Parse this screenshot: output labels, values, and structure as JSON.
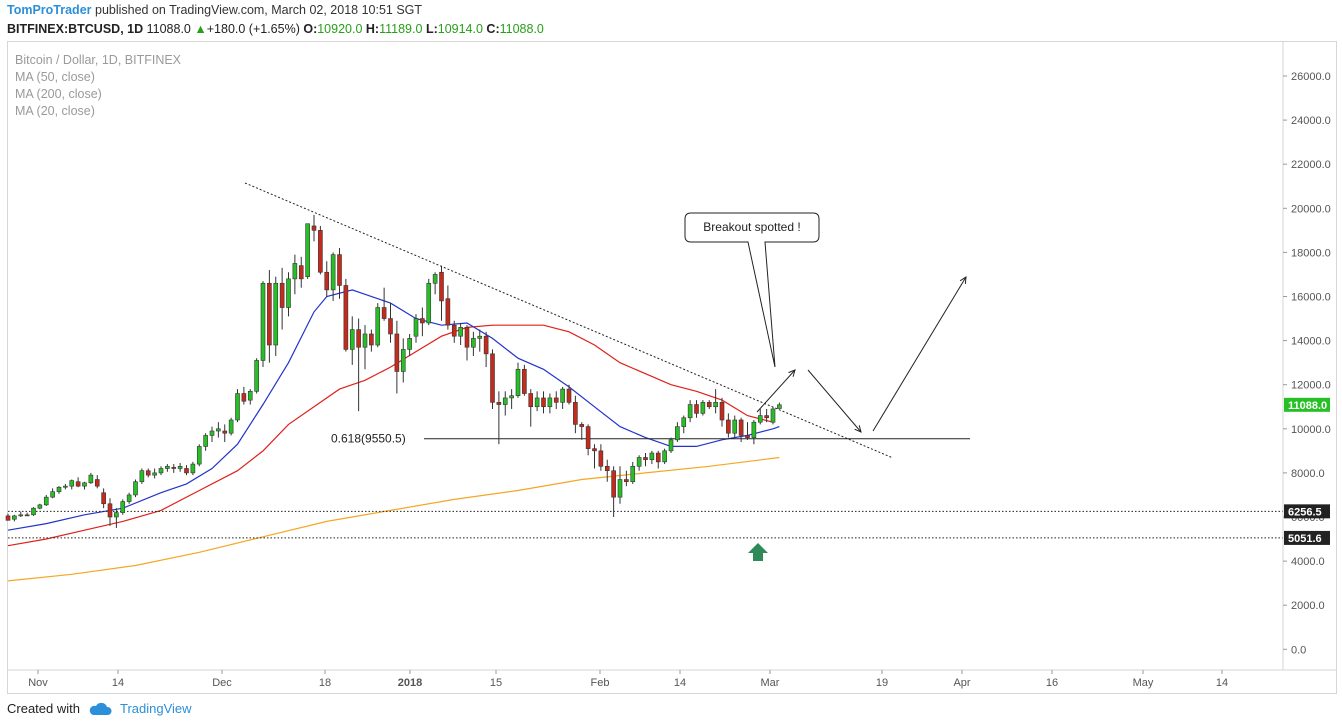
{
  "header": {
    "author": "TomProTrader",
    "published": " published on TradingView.com, March 02, 2018 10:51 SGT",
    "symbol": "BITFINEX:BTCUSD, 1D",
    "last": "11088.0",
    "change": "+180.0 (+1.65%)",
    "o_label": "O:",
    "o_value": "10920.0",
    "h_label": "H:",
    "h_value": "11189.0",
    "l_label": "L:",
    "l_value": "10914.0",
    "c_label": "C:",
    "c_value": "11088.0"
  },
  "legend": {
    "title": "Bitcoin / Dollar, 1D, BITFINEX",
    "ma50": "MA (50, close)",
    "ma200": "MA (200, close)",
    "ma20": "MA (20, close)"
  },
  "annotations": {
    "fib_label": "0.618(9550.5)",
    "callout": "Breakout spotted !"
  },
  "footer": {
    "created_with": "Created with",
    "brand": "TradingView"
  },
  "colors": {
    "up": "#26c026",
    "down": "#c42b1c",
    "ma20": "#2233cc",
    "ma50": "#e0201a",
    "ma200": "#f5a623",
    "last_badge": "#26c026",
    "marker": "#2e8b57"
  },
  "chart_data": {
    "type": "candlestick",
    "y_axis_ticks": [
      "26000.0",
      "24000.0",
      "22000.0",
      "20000.0",
      "18000.0",
      "16000.0",
      "14000.0",
      "12000.0",
      "10000.0",
      "8000.0",
      "6000.0",
      "4000.0",
      "2000.0",
      "0.0"
    ],
    "x_axis_ticks": [
      "Nov",
      "14",
      "Dec",
      "18",
      "2018",
      "15",
      "Feb",
      "14",
      "Mar",
      "19",
      "Apr",
      "16",
      "May",
      "14"
    ],
    "ylim": [
      -800,
      27200
    ],
    "price_labels": {
      "last": "11088.0",
      "support1": "6256.5",
      "support2": "5051.6"
    },
    "levels": {
      "fib": 9550.5,
      "support1": 6256.5,
      "support2": 5051.6
    },
    "trendline": [
      [
        0,
        21100
      ],
      [
        125,
        8600
      ]
    ],
    "candles": [
      [
        0,
        6050,
        6150,
        5900,
        5850
      ],
      [
        1,
        5900,
        6100,
        5800,
        6050
      ],
      [
        2,
        6050,
        6250,
        6000,
        6100
      ],
      [
        3,
        6100,
        6200,
        6050,
        6050
      ],
      [
        4,
        6100,
        6450,
        6050,
        6400
      ],
      [
        5,
        6400,
        6600,
        6350,
        6550
      ],
      [
        6,
        6550,
        7000,
        6500,
        6900
      ],
      [
        7,
        6900,
        7300,
        6850,
        7150
      ],
      [
        8,
        7150,
        7400,
        7050,
        7350
      ],
      [
        9,
        7350,
        7500,
        7250,
        7400
      ],
      [
        10,
        7400,
        7700,
        7250,
        7650
      ],
      [
        11,
        7600,
        7800,
        7350,
        7400
      ],
      [
        12,
        7400,
        7600,
        7250,
        7550
      ],
      [
        13,
        7550,
        8000,
        7500,
        7900
      ],
      [
        14,
        7700,
        7900,
        7300,
        7400
      ],
      [
        15,
        7100,
        7300,
        6400,
        6600
      ],
      [
        16,
        6600,
        6850,
        5600,
        6000
      ],
      [
        17,
        6000,
        6400,
        5500,
        6200
      ],
      [
        18,
        6200,
        6800,
        6100,
        6700
      ],
      [
        19,
        6700,
        7100,
        6600,
        7000
      ],
      [
        20,
        7000,
        7700,
        6900,
        7600
      ],
      [
        21,
        7600,
        8200,
        7500,
        8100
      ],
      [
        22,
        8100,
        8200,
        7800,
        7900
      ],
      [
        23,
        7900,
        8200,
        7750,
        8000
      ],
      [
        24,
        8000,
        8300,
        7900,
        8200
      ],
      [
        25,
        8200,
        8400,
        8050,
        8300
      ],
      [
        26,
        8250,
        8400,
        8000,
        8200
      ],
      [
        27,
        8200,
        8450,
        8050,
        8300
      ],
      [
        28,
        8200,
        8350,
        7900,
        8000
      ],
      [
        29,
        8000,
        8500,
        7900,
        8400
      ],
      [
        30,
        8400,
        9300,
        8300,
        9200
      ],
      [
        31,
        9200,
        9800,
        9000,
        9700
      ],
      [
        32,
        9700,
        10100,
        9400,
        9900
      ],
      [
        33,
        9900,
        10300,
        9600,
        10000
      ],
      [
        34,
        9900,
        10200,
        9400,
        9800
      ],
      [
        35,
        9800,
        10500,
        9700,
        10400
      ],
      [
        36,
        10400,
        11800,
        10300,
        11600
      ],
      [
        37,
        11600,
        11900,
        11100,
        11250
      ],
      [
        38,
        11300,
        11800,
        11100,
        11700
      ],
      [
        39,
        11700,
        13200,
        11600,
        13100
      ],
      [
        40,
        13100,
        16700,
        12800,
        16600
      ],
      [
        41,
        16600,
        17200,
        13000,
        13800
      ],
      [
        42,
        13800,
        16900,
        13300,
        16600
      ],
      [
        43,
        16600,
        17300,
        14500,
        15500
      ],
      [
        44,
        15500,
        17100,
        15100,
        16800
      ],
      [
        45,
        16800,
        17900,
        16100,
        17500
      ],
      [
        46,
        17400,
        17800,
        16400,
        16800
      ],
      [
        47,
        16900,
        19300,
        16800,
        19300
      ],
      [
        48,
        19200,
        19700,
        18500,
        19000
      ],
      [
        49,
        19000,
        19200,
        17000,
        17100
      ],
      [
        50,
        17100,
        17600,
        16000,
        16300
      ],
      [
        51,
        16300,
        18000,
        15800,
        17900
      ],
      [
        52,
        17900,
        18200,
        15900,
        16500
      ],
      [
        53,
        16500,
        16800,
        13500,
        13600
      ],
      [
        54,
        13600,
        15100,
        12900,
        14500
      ],
      [
        55,
        14500,
        15000,
        10800,
        13700
      ],
      [
        56,
        13700,
        14700,
        12700,
        14300
      ],
      [
        57,
        14300,
        14500,
        13500,
        13800
      ],
      [
        58,
        13800,
        15700,
        13700,
        15500
      ],
      [
        59,
        15500,
        16400,
        14900,
        15000
      ],
      [
        60,
        15000,
        15700,
        13900,
        14300
      ],
      [
        61,
        14300,
        14900,
        11600,
        12600
      ],
      [
        62,
        12600,
        14100,
        12100,
        13600
      ],
      [
        63,
        13600,
        14300,
        13300,
        14100
      ],
      [
        64,
        14200,
        15200,
        13900,
        15000
      ],
      [
        65,
        15000,
        15500,
        14200,
        14800
      ],
      [
        66,
        14800,
        16800,
        14700,
        16600
      ],
      [
        67,
        16600,
        17100,
        16100,
        17000
      ],
      [
        68,
        17100,
        17400,
        14900,
        15800
      ],
      [
        69,
        15900,
        16500,
        14500,
        14700
      ],
      [
        70,
        14700,
        14900,
        13900,
        14200
      ],
      [
        71,
        14200,
        14800,
        13800,
        14600
      ],
      [
        72,
        14600,
        14700,
        13100,
        13700
      ],
      [
        73,
        13700,
        14400,
        13300,
        14100
      ],
      [
        74,
        14100,
        14500,
        13500,
        14200
      ],
      [
        75,
        14200,
        14400,
        12800,
        13400
      ],
      [
        76,
        13400,
        13600,
        10900,
        11200
      ],
      [
        77,
        11200,
        11700,
        9300,
        11100
      ],
      [
        78,
        11100,
        11700,
        10600,
        11400
      ],
      [
        79,
        11400,
        11800,
        10900,
        11500
      ],
      [
        80,
        11500,
        13000,
        11400,
        12700
      ],
      [
        81,
        12700,
        12900,
        11500,
        11600
      ],
      [
        82,
        11600,
        11800,
        10100,
        11000
      ],
      [
        83,
        11000,
        11700,
        10800,
        11400
      ],
      [
        84,
        11400,
        11700,
        10700,
        11000
      ],
      [
        85,
        11000,
        11600,
        10700,
        11400
      ],
      [
        86,
        11400,
        11700,
        10900,
        11200
      ],
      [
        87,
        11200,
        11900,
        10900,
        11800
      ],
      [
        88,
        11800,
        12000,
        11100,
        11200
      ],
      [
        89,
        11200,
        11500,
        9800,
        10200
      ],
      [
        90,
        10200,
        10300,
        9500,
        10100
      ],
      [
        91,
        10100,
        10200,
        8800,
        9100
      ],
      [
        92,
        9100,
        9300,
        8200,
        9000
      ],
      [
        93,
        9000,
        9300,
        8100,
        8300
      ],
      [
        94,
        8300,
        8600,
        7600,
        8100
      ],
      [
        95,
        8100,
        8300,
        6000,
        6900
      ],
      [
        96,
        6900,
        8300,
        6600,
        7700
      ],
      [
        97,
        7700,
        8100,
        7400,
        7600
      ],
      [
        98,
        7600,
        8500,
        7500,
        8300
      ],
      [
        99,
        8300,
        8800,
        8100,
        8700
      ],
      [
        100,
        8700,
        8900,
        8300,
        8600
      ],
      [
        101,
        8600,
        9000,
        8400,
        8900
      ],
      [
        102,
        8900,
        9000,
        8200,
        8500
      ],
      [
        103,
        8500,
        9100,
        8400,
        9000
      ],
      [
        104,
        9000,
        9600,
        8900,
        9500
      ],
      [
        105,
        9500,
        10300,
        9400,
        10100
      ],
      [
        106,
        10100,
        10600,
        9800,
        10500
      ],
      [
        107,
        10500,
        11300,
        10300,
        11100
      ],
      [
        108,
        11100,
        11300,
        10500,
        10700
      ],
      [
        109,
        10700,
        11300,
        10600,
        11200
      ],
      [
        110,
        11200,
        11300,
        10900,
        11000
      ],
      [
        111,
        11000,
        11800,
        10700,
        11200
      ],
      [
        112,
        11200,
        11400,
        10100,
        10400
      ],
      [
        113,
        10400,
        10700,
        9600,
        9800
      ],
      [
        114,
        9800,
        10600,
        9600,
        10400
      ],
      [
        115,
        10400,
        10500,
        9400,
        9700
      ],
      [
        116,
        9700,
        10300,
        9500,
        9600
      ],
      [
        117,
        9600,
        10400,
        9300,
        10300
      ],
      [
        118,
        10300,
        10900,
        10200,
        10600
      ],
      [
        119,
        10600,
        10900,
        10300,
        10500
      ],
      [
        120,
        10300,
        11000,
        10200,
        10900
      ],
      [
        121,
        10920,
        11189,
        10914,
        11088
      ]
    ],
    "ma20": [
      [
        0,
        5400
      ],
      [
        6,
        5700
      ],
      [
        12,
        6100
      ],
      [
        18,
        6400
      ],
      [
        24,
        7100
      ],
      [
        28,
        7500
      ],
      [
        32,
        8200
      ],
      [
        36,
        9300
      ],
      [
        40,
        11100
      ],
      [
        44,
        13000
      ],
      [
        48,
        15300
      ],
      [
        50,
        16000
      ],
      [
        54,
        16300
      ],
      [
        56,
        16100
      ],
      [
        60,
        15700
      ],
      [
        64,
        15000
      ],
      [
        68,
        14700
      ],
      [
        72,
        14800
      ],
      [
        76,
        14100
      ],
      [
        80,
        13200
      ],
      [
        84,
        12700
      ],
      [
        88,
        11900
      ],
      [
        92,
        11000
      ],
      [
        96,
        10100
      ],
      [
        100,
        9600
      ],
      [
        104,
        9200
      ],
      [
        108,
        9200
      ],
      [
        112,
        9500
      ],
      [
        116,
        9700
      ],
      [
        120,
        10000
      ],
      [
        121,
        10100
      ]
    ],
    "ma50": [
      [
        0,
        4700
      ],
      [
        6,
        5000
      ],
      [
        12,
        5400
      ],
      [
        18,
        5800
      ],
      [
        24,
        6300
      ],
      [
        30,
        7200
      ],
      [
        36,
        8100
      ],
      [
        40,
        9000
      ],
      [
        44,
        10200
      ],
      [
        48,
        11000
      ],
      [
        52,
        11800
      ],
      [
        56,
        12200
      ],
      [
        60,
        12800
      ],
      [
        64,
        13500
      ],
      [
        68,
        14200
      ],
      [
        72,
        14600
      ],
      [
        76,
        14700
      ],
      [
        80,
        14700
      ],
      [
        84,
        14700
      ],
      [
        88,
        14400
      ],
      [
        92,
        13800
      ],
      [
        96,
        13000
      ],
      [
        100,
        12500
      ],
      [
        104,
        12000
      ],
      [
        108,
        11700
      ],
      [
        112,
        11300
      ],
      [
        116,
        10600
      ],
      [
        120,
        10300
      ]
    ],
    "ma200": [
      [
        0,
        3100
      ],
      [
        10,
        3400
      ],
      [
        20,
        3800
      ],
      [
        30,
        4400
      ],
      [
        40,
        5100
      ],
      [
        50,
        5800
      ],
      [
        60,
        6300
      ],
      [
        70,
        6800
      ],
      [
        80,
        7200
      ],
      [
        90,
        7700
      ],
      [
        100,
        8000
      ],
      [
        110,
        8300
      ],
      [
        121,
        8700
      ]
    ]
  }
}
